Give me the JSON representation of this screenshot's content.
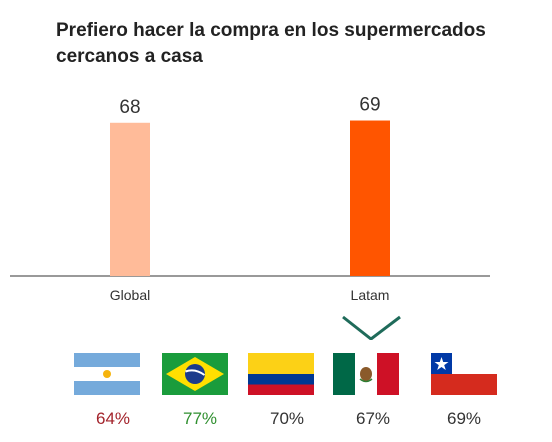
{
  "title": "Prefiero hacer la compra en los supermercados cercanos a casa",
  "chart_data": {
    "type": "bar",
    "categories": [
      "Global",
      "Latam"
    ],
    "values": [
      68,
      69
    ],
    "colors": [
      "#ffbb99",
      "#ff5500"
    ],
    "data_labels": [
      "68",
      "69"
    ],
    "ylim": [
      0,
      75
    ],
    "grid": false,
    "highlight": "Latam"
  },
  "countries": [
    {
      "flag": "argentina-flag-icon",
      "value": "64%",
      "color": "#a3232b"
    },
    {
      "flag": "brazil-flag-icon",
      "value": "77%",
      "color": "#2f8f2f"
    },
    {
      "flag": "colombia-flag-icon",
      "value": "70%",
      "color": "#333333"
    },
    {
      "flag": "mexico-flag-icon",
      "value": "67%",
      "color": "#333333"
    },
    {
      "flag": "chile-flag-icon",
      "value": "69%",
      "color": "#333333"
    }
  ],
  "selector_color": "#1f6b5a"
}
